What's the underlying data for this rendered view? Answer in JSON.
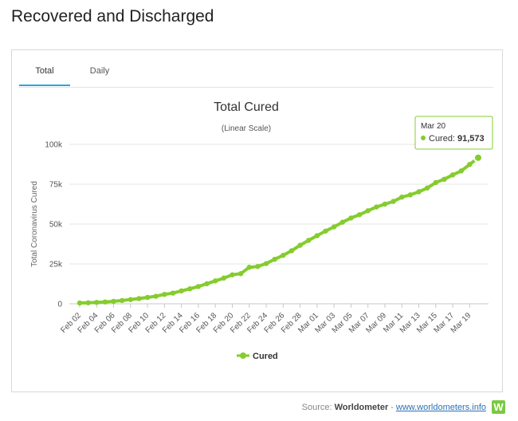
{
  "page": {
    "title": "Recovered and Discharged"
  },
  "tabs": [
    {
      "label": "Total"
    },
    {
      "label": "Daily"
    }
  ],
  "source": {
    "prefix": "Source:",
    "name": "Worldometer",
    "separator": "-",
    "link_text": "www.worldometers.info",
    "logo_letter": "W"
  },
  "colors": {
    "series": "#85cc2e",
    "tab_accent": "#2aa7d8",
    "grid": "#e6e6e6"
  },
  "chart_data": {
    "type": "line",
    "title": "Total Cured",
    "subtitle": "(Linear Scale)",
    "xlabel": "",
    "ylabel": "Total Coronavirus Cured",
    "ylim": [
      0,
      100000
    ],
    "yticks": [
      0,
      25000,
      50000,
      75000,
      100000
    ],
    "ytick_labels": [
      "0",
      "25k",
      "50k",
      "75k",
      "100k"
    ],
    "xtick_labels": [
      "Feb 02",
      "Feb 04",
      "Feb 06",
      "Feb 08",
      "Feb 10",
      "Feb 12",
      "Feb 14",
      "Feb 16",
      "Feb 18",
      "Feb 20",
      "Feb 22",
      "Feb 24",
      "Feb 26",
      "Feb 28",
      "Mar 01",
      "Mar 03",
      "Mar 05",
      "Mar 07",
      "Mar 09",
      "Mar 11",
      "Mar 13",
      "Mar 15",
      "Mar 17",
      "Mar 19"
    ],
    "categories": [
      "Feb 02",
      "Feb 03",
      "Feb 04",
      "Feb 05",
      "Feb 06",
      "Feb 07",
      "Feb 08",
      "Feb 09",
      "Feb 10",
      "Feb 11",
      "Feb 12",
      "Feb 13",
      "Feb 14",
      "Feb 15",
      "Feb 16",
      "Feb 17",
      "Feb 18",
      "Feb 19",
      "Feb 20",
      "Feb 21",
      "Feb 22",
      "Feb 23",
      "Feb 24",
      "Feb 25",
      "Feb 26",
      "Feb 27",
      "Feb 28",
      "Feb 29",
      "Mar 01",
      "Mar 02",
      "Mar 03",
      "Mar 04",
      "Mar 05",
      "Mar 06",
      "Mar 07",
      "Mar 08",
      "Mar 09",
      "Mar 10",
      "Mar 11",
      "Mar 12",
      "Mar 13",
      "Mar 14",
      "Mar 15",
      "Mar 16",
      "Mar 17",
      "Mar 18",
      "Mar 19",
      "Mar 20"
    ],
    "series": [
      {
        "name": "Cured",
        "values": [
          510,
          633,
          893,
          1152,
          1540,
          2050,
          2649,
          3281,
          3996,
          4740,
          5911,
          6723,
          8096,
          9419,
          10844,
          12583,
          14352,
          16121,
          18177,
          18890,
          22886,
          23394,
          25227,
          27905,
          30384,
          33277,
          36711,
          39782,
          42716,
          45602,
          48228,
          51170,
          53796,
          55865,
          58358,
          60695,
          62512,
          64220,
          66908,
          68321,
          70251,
          72624,
          76034,
          78088,
          80840,
          83312,
          87403,
          91573
        ]
      }
    ],
    "legend": {
      "position": "bottom",
      "label": "Cured"
    },
    "tooltip": {
      "date": "Mar 20",
      "label": "Cured:",
      "value": "91,573"
    }
  }
}
